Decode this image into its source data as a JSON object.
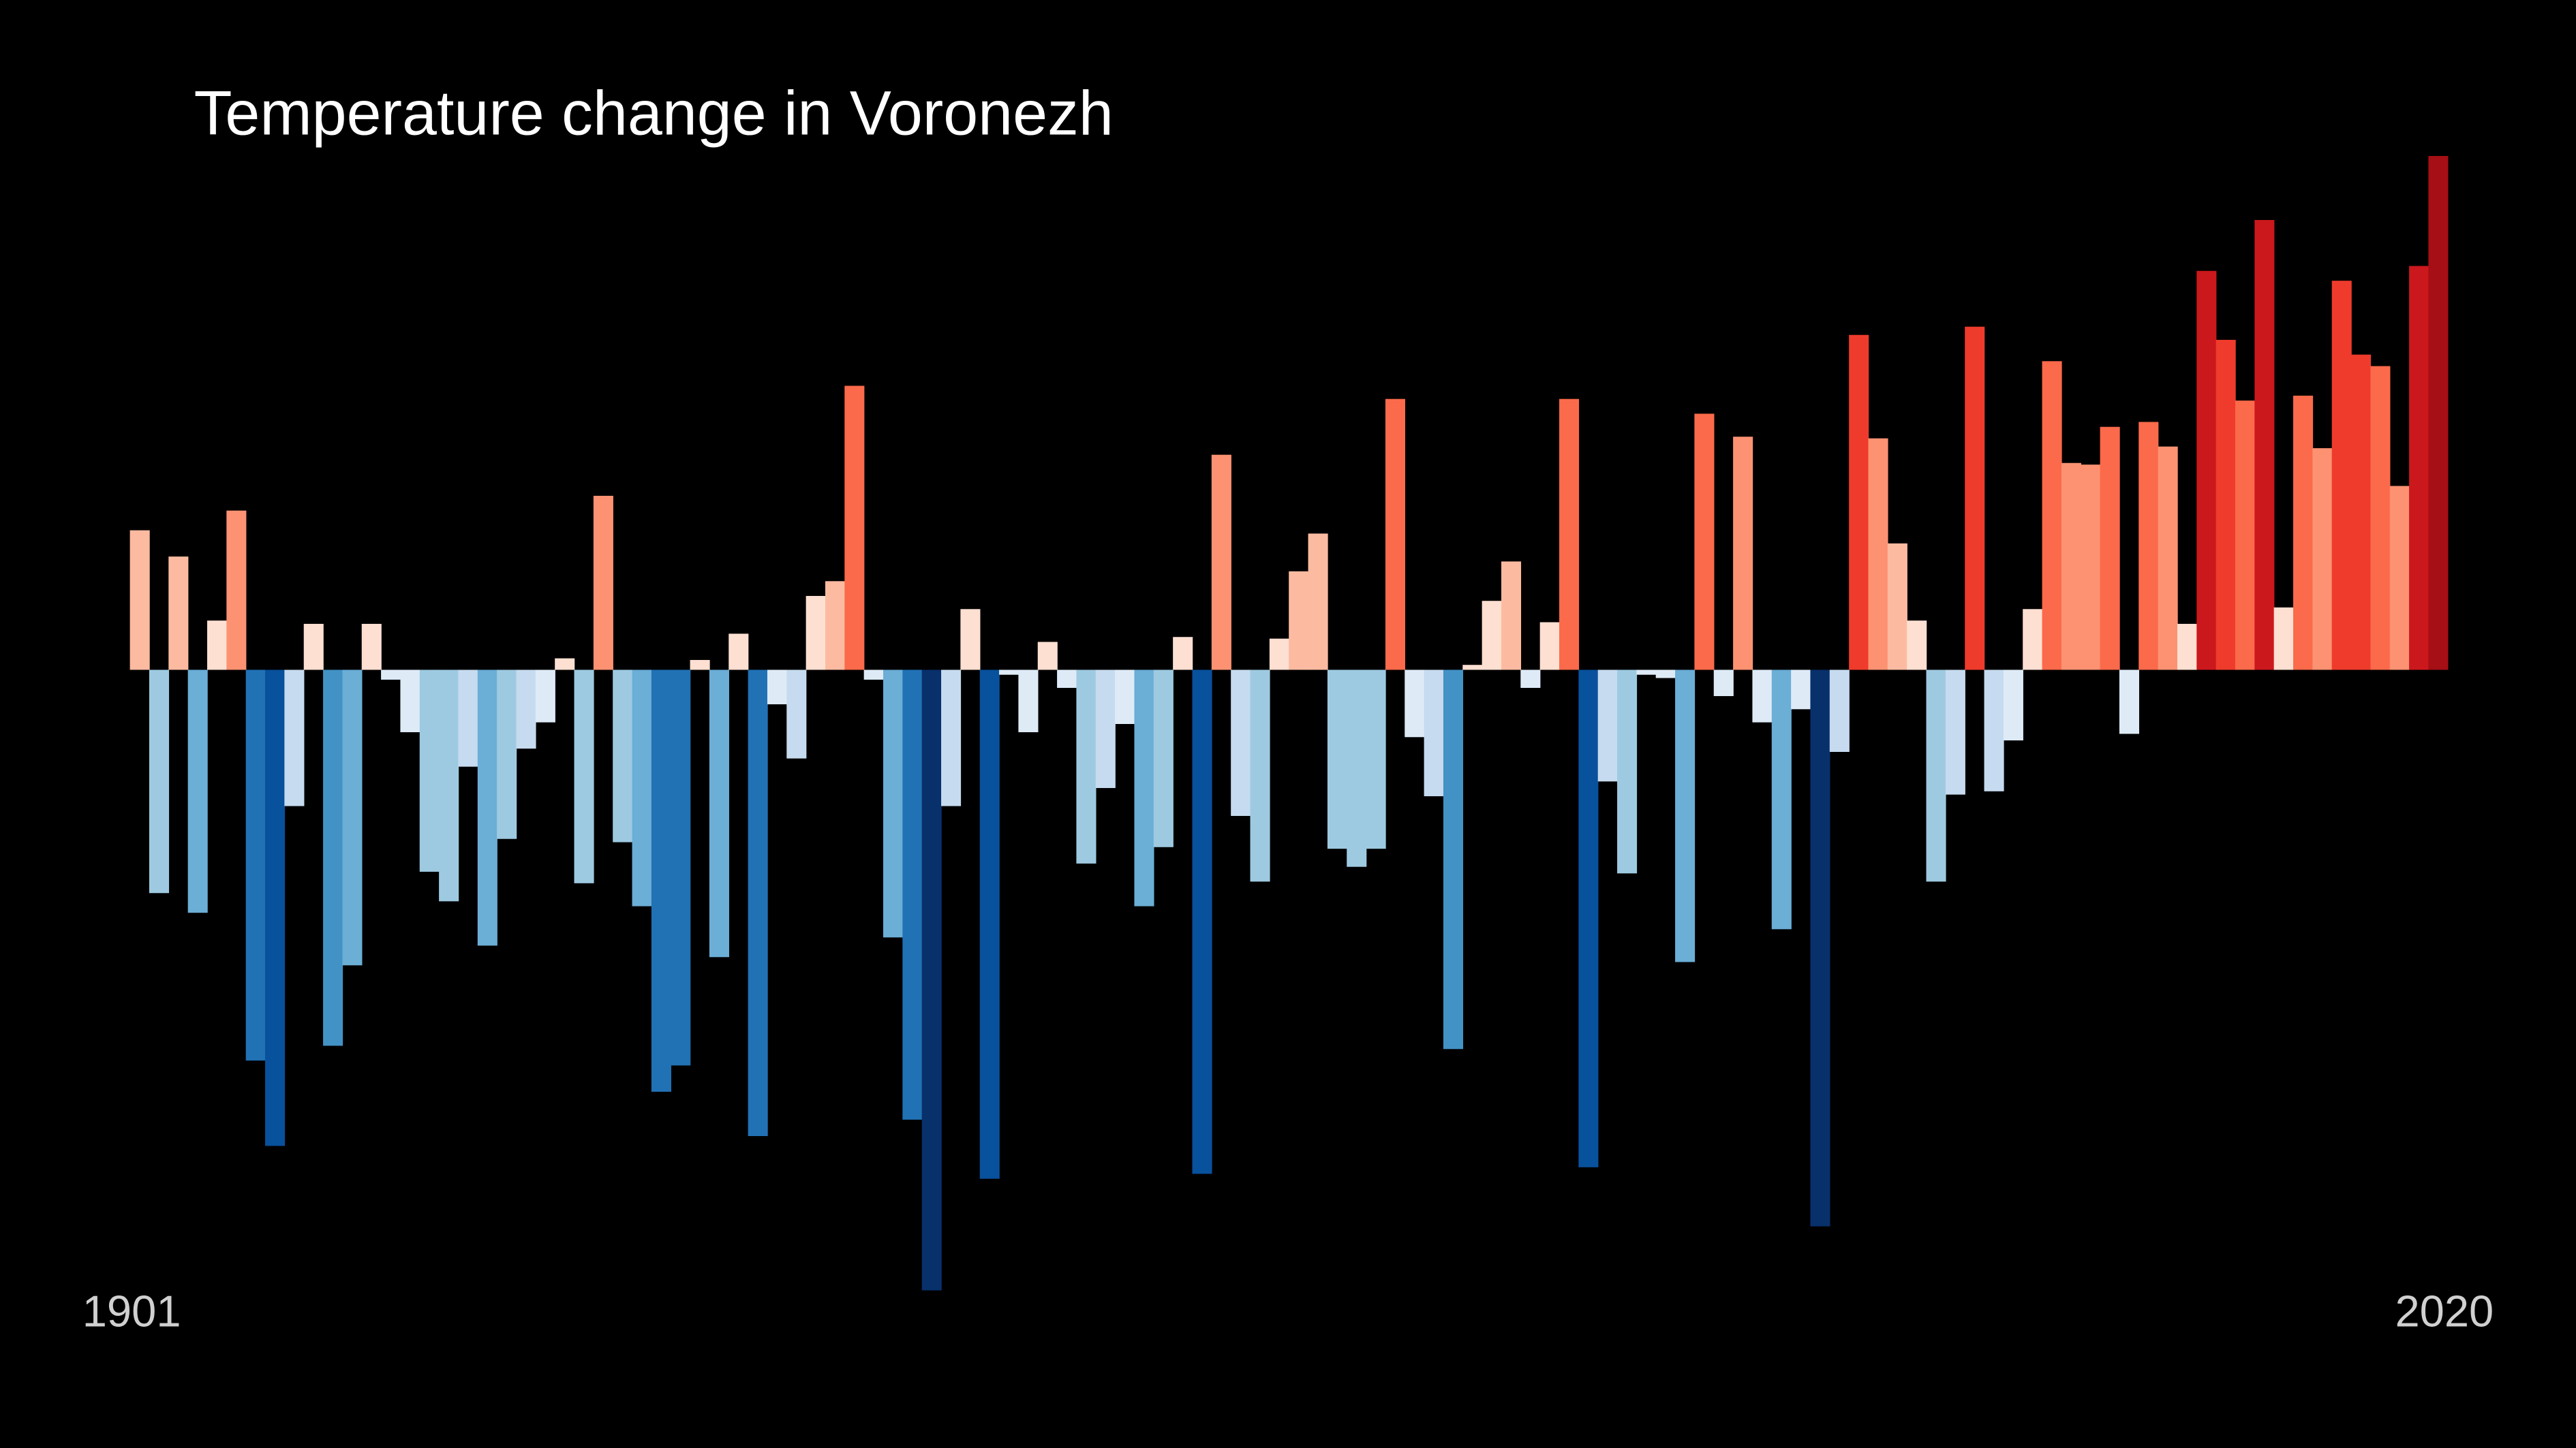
{
  "chart_data": {
    "type": "bar",
    "title": "Temperature change in Voronezh",
    "categories": [
      "1901",
      null,
      null,
      null,
      null,
      null,
      null,
      null,
      null,
      null,
      null,
      null,
      null,
      null,
      null,
      null,
      null,
      null,
      null,
      null,
      null,
      null,
      null,
      null,
      null,
      null,
      null,
      null,
      null,
      null,
      null,
      null,
      null,
      null,
      null,
      null,
      null,
      null,
      null,
      null,
      null,
      null,
      null,
      null,
      null,
      null,
      null,
      null,
      null,
      null,
      null,
      null,
      null,
      null,
      null,
      null,
      null,
      null,
      null,
      null,
      null,
      null,
      null,
      null,
      null,
      null,
      null,
      null,
      null,
      null,
      null,
      null,
      null,
      null,
      null,
      null,
      null,
      null,
      null,
      null,
      null,
      null,
      null,
      null,
      null,
      null,
      null,
      null,
      null,
      null,
      null,
      null,
      null,
      null,
      null,
      null,
      null,
      null,
      null,
      null,
      null,
      null,
      null,
      null,
      null,
      null,
      null,
      null,
      null,
      null,
      null,
      null,
      null,
      null,
      null,
      null,
      null,
      null,
      null,
      "2020"
    ],
    "values": [
      0.85,
      -1.36,
      0.69,
      -1.48,
      0.3,
      0.97,
      -2.38,
      -2.9,
      -0.83,
      0.28,
      -2.29,
      -1.8,
      0.28,
      -0.06,
      -0.38,
      -1.23,
      -1.41,
      -0.59,
      -1.68,
      -1.03,
      -0.48,
      -0.32,
      0.07,
      -1.3,
      1.06,
      -1.05,
      -1.44,
      -2.57,
      -2.41,
      0.06,
      -1.75,
      0.22,
      -2.84,
      -0.21,
      -0.54,
      0.45,
      0.54,
      1.73,
      -0.06,
      -1.63,
      -2.74,
      -3.78,
      -0.83,
      0.37,
      -3.1,
      -0.03,
      -0.38,
      0.17,
      -0.11,
      -1.18,
      -0.72,
      -0.33,
      -1.44,
      -1.08,
      0.2,
      -3.07,
      1.31,
      -0.89,
      -1.29,
      0.19,
      0.6,
      0.83,
      -1.09,
      -1.2,
      -1.09,
      1.65,
      -0.41,
      -0.77,
      -2.31,
      0.03,
      0.42,
      0.66,
      -0.11,
      0.29,
      1.65,
      -3.03,
      -0.68,
      -1.24,
      -0.03,
      -0.05,
      -1.78,
      1.56,
      -0.16,
      1.42,
      -0.32,
      -1.58,
      -0.24,
      -3.39,
      -0.5,
      2.04,
      1.41,
      0.77,
      0.3,
      -1.29,
      -0.76,
      2.09,
      -0.74,
      -0.43,
      0.37,
      1.88,
      1.26,
      1.25,
      1.48,
      -0.39,
      1.51,
      1.36,
      0.28,
      2.43,
      2.01,
      1.64,
      2.74,
      0.38,
      1.67,
      1.35,
      2.37,
      1.92,
      1.85,
      1.12,
      2.46,
      3.13
    ],
    "ylim": [
      -3.8,
      3.2
    ],
    "colorscale": [
      "#08306b",
      "#08519c",
      "#2171b5",
      "#4292c6",
      "#6baed6",
      "#9ecae1",
      "#c6dbef",
      "#deebf7",
      "#fee0d2",
      "#fcbba1",
      "#fc9272",
      "#fb6a4a",
      "#ef3b2c",
      "#cb181d",
      "#a50f15",
      "#67000d"
    ]
  }
}
